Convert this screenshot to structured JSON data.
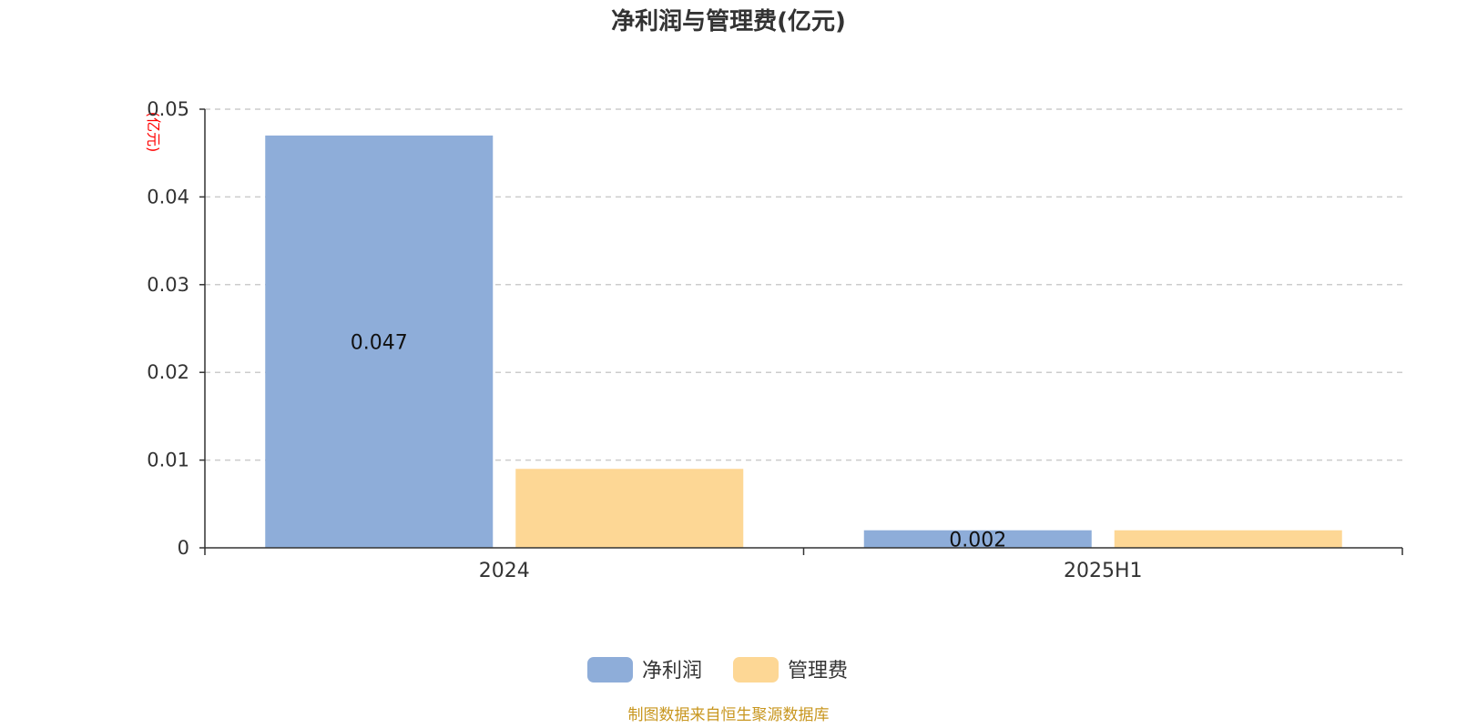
{
  "chart_data": {
    "type": "bar",
    "title": "净利润与管理费(亿元)",
    "y_unit_label": "(亿元)",
    "categories": [
      "2024",
      "2025H1"
    ],
    "series": [
      {
        "name": "净利润",
        "values": [
          0.047,
          0.002
        ],
        "labels": [
          "0.047",
          "0.002"
        ],
        "color": "#8eadd9"
      },
      {
        "name": "管理费",
        "values": [
          0.009,
          0.002
        ],
        "labels": [
          "",
          ""
        ],
        "color": "#fdd795"
      }
    ],
    "ylim": [
      0,
      0.05
    ],
    "yticks": [
      0,
      0.01,
      0.02,
      0.03,
      0.04,
      0.05
    ],
    "ytick_labels": [
      "0",
      "0.01",
      "0.02",
      "0.03",
      "0.04",
      "0.05"
    ],
    "grid": true,
    "legend_position": "bottom-center"
  },
  "source_note": "制图数据来自恒生聚源数据库"
}
